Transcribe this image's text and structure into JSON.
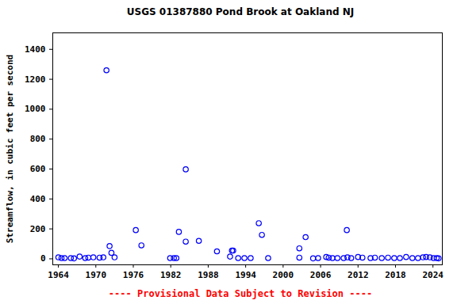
{
  "chart_data": {
    "type": "scatter",
    "title": "USGS 01387880 Pond Brook at Oakland NJ",
    "caption": "---- Provisional Data Subject to Revision ----",
    "y_label": "Streamflow, in cubic feet per second",
    "color": "#0000ff",
    "marker": "circle",
    "grid": false,
    "xlim": [
      1963.1,
      2025.5
    ],
    "xticks": [
      1964,
      1970,
      1976,
      1982,
      1988,
      1994,
      2000,
      2006,
      2012,
      2018,
      2024
    ],
    "ylim": [
      -40,
      1510
    ],
    "yticks": [
      0,
      200,
      400,
      600,
      800,
      1000,
      1200,
      1400
    ],
    "x": [
      1964.0,
      1964.5,
      1965.0,
      1966.0,
      1966.5,
      1967.4,
      1968.3,
      1968.8,
      1969.6,
      1970.6,
      1971.2,
      1971.7,
      1972.2,
      1972.5,
      1973.0,
      1976.4,
      1977.3,
      1981.9,
      1982.5,
      1982.9,
      1983.3,
      1984.4,
      1984.4,
      1986.5,
      1989.4,
      1991.5,
      1991.8,
      1992.0,
      1992.8,
      1993.8,
      1994.8,
      1996.1,
      1996.6,
      1997.6,
      2002.6,
      2002.6,
      2003.6,
      2004.8,
      2005.6,
      2006.9,
      2007.3,
      2007.9,
      2008.7,
      2009.7,
      2010.3,
      2010.2,
      2010.9,
      2012.0,
      2012.7,
      2014.0,
      2014.7,
      2015.8,
      2016.8,
      2017.8,
      2018.7,
      2019.7,
      2020.7,
      2021.6,
      2022.4,
      2022.9,
      2023.5,
      2024.1,
      2024.6,
      2024.9
    ],
    "values": [
      10,
      5,
      5,
      5,
      3,
      15,
      5,
      8,
      10,
      8,
      10,
      1260,
      85,
      40,
      10,
      192,
      90,
      5,
      5,
      5,
      180,
      598,
      115,
      120,
      50,
      15,
      55,
      55,
      5,
      5,
      5,
      238,
      160,
      5,
      70,
      8,
      145,
      3,
      5,
      12,
      8,
      5,
      5,
      5,
      10,
      192,
      5,
      12,
      8,
      5,
      8,
      5,
      8,
      5,
      5,
      12,
      5,
      5,
      10,
      12,
      10,
      5,
      5,
      3
    ]
  }
}
